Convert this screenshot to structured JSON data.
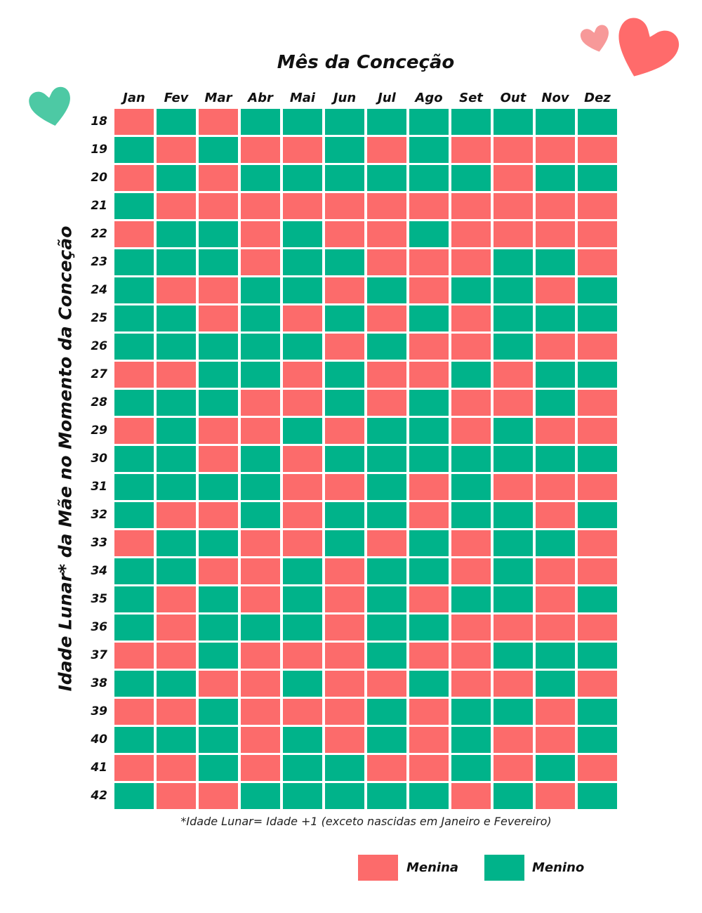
{
  "colors": {
    "girl": "#fc6b6b",
    "boy": "#00b38a",
    "heart_green": "#4dc9a4",
    "heart_pink_small": "#f79999",
    "heart_pink_large": "#ff6b6b"
  },
  "chart_data": {
    "type": "table",
    "title": "Mês da Conceção",
    "ylabel": "Idade Lunar* da Mãe no Momento da Conceção",
    "columns": [
      "Jan",
      "Fev",
      "Mar",
      "Abr",
      "Mai",
      "Jun",
      "Jul",
      "Ago",
      "Set",
      "Out",
      "Nov",
      "Dez"
    ],
    "rows": [
      "18",
      "19",
      "20",
      "21",
      "22",
      "23",
      "24",
      "25",
      "26",
      "27",
      "28",
      "29",
      "30",
      "31",
      "32",
      "33",
      "34",
      "35",
      "36",
      "37",
      "38",
      "39",
      "40",
      "41",
      "42"
    ],
    "values": [
      [
        "G",
        "B",
        "G",
        "B",
        "B",
        "B",
        "B",
        "B",
        "B",
        "B",
        "B",
        "B"
      ],
      [
        "B",
        "G",
        "B",
        "G",
        "G",
        "B",
        "G",
        "B",
        "G",
        "G",
        "G",
        "G"
      ],
      [
        "G",
        "B",
        "G",
        "B",
        "B",
        "B",
        "B",
        "B",
        "B",
        "G",
        "B",
        "B"
      ],
      [
        "B",
        "G",
        "G",
        "G",
        "G",
        "G",
        "G",
        "G",
        "G",
        "G",
        "G",
        "G"
      ],
      [
        "G",
        "B",
        "B",
        "G",
        "B",
        "G",
        "G",
        "B",
        "G",
        "G",
        "G",
        "G"
      ],
      [
        "B",
        "B",
        "B",
        "G",
        "B",
        "B",
        "G",
        "G",
        "G",
        "B",
        "B",
        "G"
      ],
      [
        "B",
        "G",
        "G",
        "B",
        "B",
        "G",
        "B",
        "G",
        "B",
        "B",
        "G",
        "B"
      ],
      [
        "B",
        "B",
        "G",
        "B",
        "G",
        "B",
        "G",
        "B",
        "G",
        "B",
        "B",
        "B"
      ],
      [
        "B",
        "B",
        "B",
        "B",
        "B",
        "G",
        "B",
        "G",
        "G",
        "B",
        "G",
        "G"
      ],
      [
        "G",
        "G",
        "B",
        "B",
        "G",
        "B",
        "G",
        "G",
        "B",
        "G",
        "B",
        "B"
      ],
      [
        "B",
        "B",
        "B",
        "G",
        "G",
        "B",
        "G",
        "B",
        "G",
        "G",
        "B",
        "G"
      ],
      [
        "G",
        "B",
        "G",
        "G",
        "B",
        "G",
        "B",
        "B",
        "G",
        "B",
        "G",
        "G"
      ],
      [
        "B",
        "B",
        "G",
        "B",
        "G",
        "B",
        "B",
        "B",
        "B",
        "B",
        "B",
        "B"
      ],
      [
        "B",
        "B",
        "B",
        "B",
        "G",
        "G",
        "B",
        "G",
        "B",
        "G",
        "G",
        "G"
      ],
      [
        "B",
        "G",
        "G",
        "B",
        "G",
        "B",
        "B",
        "G",
        "B",
        "B",
        "G",
        "B"
      ],
      [
        "G",
        "B",
        "B",
        "G",
        "G",
        "B",
        "G",
        "B",
        "G",
        "B",
        "B",
        "G"
      ],
      [
        "B",
        "B",
        "G",
        "G",
        "B",
        "G",
        "B",
        "B",
        "G",
        "B",
        "G",
        "G"
      ],
      [
        "B",
        "G",
        "B",
        "G",
        "B",
        "G",
        "B",
        "G",
        "B",
        "B",
        "G",
        "B"
      ],
      [
        "B",
        "G",
        "B",
        "B",
        "B",
        "G",
        "B",
        "B",
        "G",
        "G",
        "G",
        "G"
      ],
      [
        "G",
        "G",
        "B",
        "G",
        "G",
        "G",
        "B",
        "G",
        "G",
        "B",
        "B",
        "B"
      ],
      [
        "B",
        "B",
        "G",
        "G",
        "B",
        "G",
        "G",
        "B",
        "G",
        "G",
        "B",
        "G"
      ],
      [
        "G",
        "G",
        "B",
        "G",
        "G",
        "G",
        "B",
        "G",
        "B",
        "B",
        "G",
        "B"
      ],
      [
        "B",
        "B",
        "B",
        "G",
        "B",
        "G",
        "B",
        "G",
        "B",
        "G",
        "G",
        "B"
      ],
      [
        "G",
        "G",
        "B",
        "G",
        "B",
        "B",
        "G",
        "G",
        "B",
        "G",
        "B",
        "G"
      ],
      [
        "B",
        "G",
        "G",
        "B",
        "B",
        "B",
        "B",
        "B",
        "G",
        "B",
        "G",
        "B"
      ]
    ],
    "footnote": "*Idade Lunar= Idade +1 (exceto nascidas em Janeiro e Fevereiro)",
    "legend": [
      {
        "key": "G",
        "label": "Menina"
      },
      {
        "key": "B",
        "label": "Menino"
      }
    ]
  }
}
